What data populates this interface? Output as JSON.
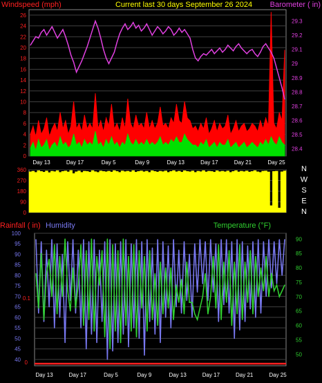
{
  "colors": {
    "background": "#000000",
    "panel": "#000000",
    "grid": "#404040",
    "wind_label": "#ff2020",
    "title": "#ffff00",
    "barometer": "#e040e0",
    "gust": "#ff0000",
    "wind": "#00e000",
    "direction_fill": "#ffff00",
    "direction_marks": "#000000",
    "rainfall": "#ff2020",
    "humidity": "#7878f0",
    "temperature": "#30d030",
    "axis_text": "#ffffff"
  },
  "chart_data": [
    {
      "type": "line",
      "id": "wind_barometer",
      "title": "Current last 30 days September 26 2024",
      "left_axis_label": "Windspeed (mph)",
      "right_axis_label": "Barometer ( in)",
      "left_ylim": [
        0,
        27
      ],
      "left_ticks": [
        "0",
        "2",
        "4",
        "6",
        "8",
        "10",
        "12",
        "14",
        "16",
        "18",
        "20",
        "22",
        "24",
        "26"
      ],
      "right_ylim": [
        28.35,
        29.38
      ],
      "right_ticks": [
        "28.4",
        "28.5",
        "28.6",
        "28.7",
        "28.8",
        "28.9",
        "29",
        "29.1",
        "29.2",
        "29.3"
      ],
      "x_tick_labels": [
        "Day 13",
        "Day 17",
        "Day 5",
        "Day 9",
        "Day 13",
        "Day 17",
        "Day 21",
        "Day 25"
      ],
      "grid": true,
      "series": [
        {
          "key": "gust",
          "values": [
            4.0,
            5.5,
            3.5,
            6.5,
            4.0,
            5.0,
            7.0,
            3.5,
            5.0,
            6.0,
            4.5,
            8.0,
            5.0,
            6.5,
            4.0,
            5.5,
            10.0,
            5.0,
            6.0,
            4.5,
            7.5,
            5.0,
            6.0,
            5.0,
            11.5,
            5.0,
            6.5,
            4.5,
            7.0,
            5.5,
            9.5,
            5.0,
            6.0,
            4.5,
            7.0,
            5.0,
            10.5,
            6.0,
            5.0,
            7.5,
            5.5,
            6.0,
            5.0,
            8.0,
            5.0,
            6.5,
            5.0,
            6.0,
            9.0,
            5.5,
            6.0,
            5.0,
            7.0,
            6.0,
            9.5,
            6.5,
            6.0,
            10.0,
            7.0,
            6.5,
            5.0,
            5.5,
            4.5,
            6.0,
            5.0,
            7.0,
            4.0,
            5.0,
            6.5,
            4.5,
            6.0,
            5.0,
            5.5,
            7.5,
            4.0,
            5.0,
            6.5,
            4.5,
            5.5,
            6.0,
            4.5,
            5.0,
            6.0,
            5.5,
            4.5,
            6.5,
            5.0,
            7.0,
            5.5,
            26.5,
            6.0,
            5.0,
            8.0,
            6.5,
            19.5
          ]
        },
        {
          "key": "wind",
          "values": [
            1.5,
            2.5,
            1.0,
            3.0,
            1.5,
            2.0,
            3.0,
            1.0,
            2.0,
            2.5,
            1.5,
            3.5,
            2.0,
            2.5,
            1.5,
            2.0,
            4.0,
            2.0,
            2.5,
            1.5,
            3.0,
            2.0,
            2.5,
            2.0,
            4.5,
            2.0,
            2.5,
            1.5,
            3.0,
            2.0,
            3.5,
            2.0,
            2.5,
            1.5,
            2.5,
            2.0,
            4.0,
            2.5,
            2.0,
            3.0,
            2.0,
            2.5,
            2.0,
            3.0,
            2.0,
            2.5,
            2.0,
            2.5,
            3.5,
            2.0,
            2.5,
            2.0,
            3.0,
            2.5,
            3.5,
            2.5,
            2.5,
            4.0,
            3.0,
            2.5,
            2.0,
            2.0,
            1.5,
            2.5,
            2.0,
            3.0,
            1.5,
            2.0,
            2.5,
            1.5,
            2.5,
            2.0,
            2.0,
            3.0,
            1.5,
            2.0,
            2.5,
            1.5,
            2.0,
            2.5,
            1.5,
            2.0,
            2.5,
            2.0,
            1.5,
            2.5,
            2.0,
            3.0,
            2.0,
            3.5,
            2.5,
            2.0,
            3.5,
            2.5,
            2.0
          ]
        },
        {
          "key": "barometer",
          "values": [
            29.13,
            29.16,
            29.19,
            29.18,
            29.22,
            29.24,
            29.2,
            29.23,
            29.26,
            29.22,
            29.18,
            29.21,
            29.24,
            29.19,
            29.13,
            29.06,
            29.01,
            28.94,
            28.98,
            29.02,
            29.07,
            29.12,
            29.18,
            29.24,
            29.3,
            29.25,
            29.18,
            29.1,
            29.04,
            29.0,
            29.04,
            29.08,
            29.15,
            29.21,
            29.25,
            29.28,
            29.24,
            29.26,
            29.29,
            29.25,
            29.27,
            29.23,
            29.25,
            29.28,
            29.24,
            29.2,
            29.23,
            29.26,
            29.24,
            29.21,
            29.23,
            29.26,
            29.24,
            29.2,
            29.22,
            29.25,
            29.22,
            29.24,
            29.21,
            29.18,
            29.1,
            29.04,
            29.02,
            29.05,
            29.07,
            29.06,
            29.08,
            29.1,
            29.07,
            29.09,
            29.11,
            29.08,
            29.1,
            29.13,
            29.11,
            29.09,
            29.12,
            29.14,
            29.11,
            29.09,
            29.07,
            29.09,
            29.1,
            29.07,
            29.05,
            29.08,
            29.12,
            29.14,
            29.11,
            29.08,
            29.04,
            28.97,
            28.9,
            28.83,
            28.75
          ]
        }
      ]
    },
    {
      "type": "area",
      "id": "wind_direction",
      "ylim": [
        0,
        360
      ],
      "left_ticks": [
        "0",
        "90",
        "180",
        "270",
        "360"
      ],
      "compass_labels": [
        "N",
        "W",
        "S",
        "E",
        "N"
      ],
      "series": [
        {
          "key": "direction",
          "values": [
            345,
            350,
            340,
            355,
            348,
            342,
            352,
            338,
            350,
            346,
            355,
            340,
            348,
            352,
            344,
            356,
            330,
            345,
            352,
            340,
            350,
            348,
            342,
            355,
            346,
            340,
            352,
            348,
            345,
            350,
            343,
            355,
            348,
            340,
            352,
            346,
            350,
            344,
            355,
            342,
            348,
            352,
            345,
            350,
            340,
            354,
            348,
            343,
            350,
            346,
            352,
            340,
            348,
            355,
            345,
            350,
            342,
            354,
            348,
            345,
            352,
            340,
            350,
            346,
            355,
            344,
            350,
            348,
            342,
            354,
            346,
            350,
            345,
            352,
            340,
            348,
            355,
            344,
            350,
            346,
            352,
            343,
            348,
            355,
            345,
            340,
            350,
            352,
            344,
            60,
            348,
            350,
            40,
            345,
            352
          ]
        }
      ]
    },
    {
      "type": "line",
      "id": "rain_humidity_temp",
      "left_axis_label": "Rainfall ( in)",
      "humidity_label": "Humidity",
      "right_axis_label": "Temperature (°F)",
      "humidity_ylim": [
        37,
        100
      ],
      "humidity_ticks": [
        "40",
        "45",
        "50",
        "55",
        "60",
        "65",
        "70",
        "75",
        "80",
        "85",
        "90",
        "95",
        "100"
      ],
      "rain_ticks": [
        "0",
        "0.1"
      ],
      "temp_ylim": [
        46,
        92
      ],
      "temp_ticks": [
        "50",
        "55",
        "60",
        "65",
        "70",
        "75",
        "80",
        "85",
        "90"
      ],
      "x_tick_labels": [
        "Day 13",
        "Day 17",
        "Day 5",
        "Day 9",
        "Day 13",
        "Day 17",
        "Day 21",
        "Day 25"
      ],
      "grid": true,
      "series": [
        {
          "key": "rainfall",
          "values": [
            0,
            0
          ]
        },
        {
          "key": "humidity",
          "values": [
            97,
            62,
            96,
            58,
            92,
            65,
            97,
            55,
            95,
            60,
            90,
            48,
            96,
            68,
            97,
            62,
            92,
            55,
            97,
            45,
            96,
            52,
            97,
            48,
            92,
            58,
            96,
            40,
            97,
            44,
            95,
            48,
            96,
            52,
            97,
            46,
            95,
            55,
            97,
            50,
            96,
            42,
            97,
            58,
            93,
            52,
            97,
            48,
            96,
            60,
            94,
            55,
            97,
            65,
            92,
            62,
            96,
            68,
            90,
            60,
            95,
            72,
            97,
            76,
            96,
            68,
            97,
            72,
            95,
            58,
            97,
            66,
            97,
            62,
            96,
            50,
            97,
            54,
            96,
            58,
            94,
            64,
            96,
            60,
            97,
            62,
            96,
            70,
            97,
            74,
            96,
            76,
            97,
            80,
            97
          ]
        },
        {
          "key": "temperature",
          "values": [
            78,
            66,
            85,
            62,
            78,
            83,
            70,
            88,
            64,
            84,
            70,
            90,
            72,
            65,
            80,
            66,
            74,
            88,
            60,
            86,
            62,
            90,
            58,
            84,
            74,
            86,
            56,
            90,
            52,
            88,
            58,
            86,
            54,
            90,
            60,
            84,
            58,
            88,
            56,
            86,
            66,
            84,
            58,
            86,
            62,
            78,
            60,
            82,
            64,
            80,
            66,
            80,
            62,
            74,
            68,
            76,
            64,
            82,
            68,
            68,
            64,
            62,
            66,
            70,
            78,
            64,
            70,
            84,
            66,
            88,
            62,
            82,
            68,
            86,
            60,
            82,
            64,
            88,
            62,
            82,
            68,
            86,
            64,
            84,
            70,
            80,
            72,
            84,
            70,
            78,
            72,
            74,
            70,
            72,
            74
          ]
        }
      ]
    }
  ]
}
